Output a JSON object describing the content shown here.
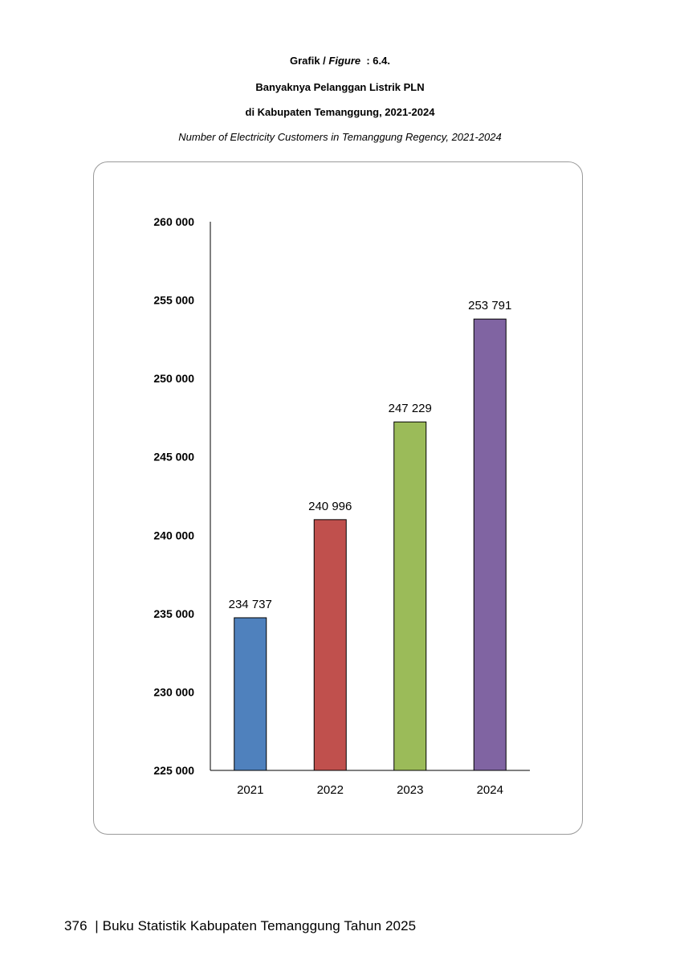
{
  "header": {
    "figure_prefix": "Grafik / ",
    "figure_word": "Figure",
    "figure_number": "  : 6.4.",
    "title_line1": "Banyaknya Pelanggan Listrik PLN",
    "title_line2": "di Kabupaten Temanggung, 2021-2024",
    "subtitle_en": "Number of Electricity Customers in Temanggung Regency, 2021-2024"
  },
  "chart_data": {
    "type": "bar",
    "categories": [
      "2021",
      "2022",
      "2023",
      "2024"
    ],
    "values": [
      234737,
      240996,
      247229,
      253791
    ],
    "value_labels": [
      "234 737",
      "240 996",
      "247 229",
      "253 791"
    ],
    "colors": [
      "#4F81BD",
      "#C0504D",
      "#9BBB59",
      "#8064A2"
    ],
    "ylim": [
      225000,
      260000
    ],
    "yticks": [
      225000,
      230000,
      235000,
      240000,
      245000,
      250000,
      255000,
      260000
    ],
    "ytick_labels": [
      "225 000",
      "230 000",
      "235 000",
      "240 000",
      "245 000",
      "250 000",
      "255 000",
      "260 000"
    ],
    "grid": false,
    "legend": "none"
  },
  "footer": {
    "text": "376  | Buku Statistik Kabupaten Temanggung Tahun 2025"
  }
}
